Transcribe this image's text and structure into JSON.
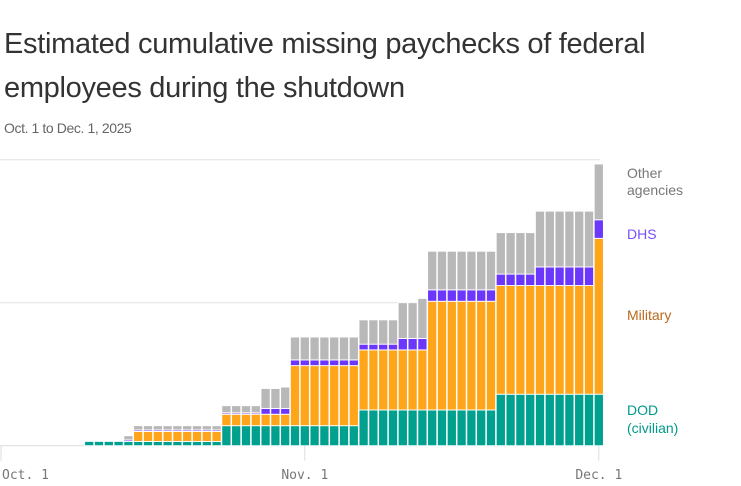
{
  "title_line1": "Estimated cumulative missing paychecks of federal",
  "title_line2": "employees during the shutdown",
  "subtitle": "Oct. 1 to Dec. 1, 2025",
  "chart_data": {
    "type": "bar",
    "stacked": true,
    "title": "Estimated cumulative missing paychecks of federal employees during the shutdown",
    "subtitle": "Oct. 1 to Dec. 1, 2025",
    "x_range": [
      "Oct. 1",
      "Dec. 1"
    ],
    "x_ticks": [
      "Oct. 1",
      "Nov. 1",
      "Dec. 1"
    ],
    "ylim": [
      0,
      2
    ],
    "y_gridlines": [
      1,
      2
    ],
    "grid": true,
    "legend_placement": "right, direct labels",
    "categories": [
      "Oct 10",
      "Oct 11",
      "Oct 12",
      "Oct 13",
      "Oct 14",
      "Oct 15",
      "Oct 16",
      "Oct 17",
      "Oct 18",
      "Oct 19",
      "Oct 20",
      "Oct 21",
      "Oct 22",
      "Oct 23",
      "Oct 24",
      "Oct 25",
      "Oct 26",
      "Oct 27",
      "Oct 28",
      "Oct 29",
      "Oct 30",
      "Oct 31",
      "Nov 1",
      "Nov 2",
      "Nov 3",
      "Nov 4",
      "Nov 5",
      "Nov 6",
      "Nov 7",
      "Nov 8",
      "Nov 9",
      "Nov 10",
      "Nov 11",
      "Nov 12",
      "Nov 13",
      "Nov 14",
      "Nov 15",
      "Nov 16",
      "Nov 17",
      "Nov 18",
      "Nov 19",
      "Nov 20",
      "Nov 21",
      "Nov 22",
      "Nov 23",
      "Nov 24",
      "Nov 25",
      "Nov 26",
      "Nov 27",
      "Nov 28",
      "Nov 29",
      "Nov 30",
      "Dec 1"
    ],
    "series": [
      {
        "name": "DOD (civilian)",
        "label_lines": [
          "DOD",
          "(civilian)"
        ],
        "color": "#00a08f",
        "label_color": "#00998a",
        "values": [
          0.03,
          0.03,
          0.03,
          0.03,
          0.03,
          0.03,
          0.03,
          0.03,
          0.03,
          0.03,
          0.03,
          0.03,
          0.03,
          0.03,
          0.14,
          0.14,
          0.14,
          0.14,
          0.14,
          0.14,
          0.14,
          0.14,
          0.14,
          0.14,
          0.14,
          0.14,
          0.14,
          0.14,
          0.25,
          0.25,
          0.25,
          0.25,
          0.25,
          0.25,
          0.25,
          0.25,
          0.25,
          0.25,
          0.25,
          0.25,
          0.25,
          0.25,
          0.36,
          0.36,
          0.36,
          0.36,
          0.36,
          0.36,
          0.36,
          0.36,
          0.36,
          0.36,
          0.36
        ]
      },
      {
        "name": "Military",
        "label_lines": [
          "Military"
        ],
        "color": "#ffa51a",
        "label_color": "#b8691c",
        "values": [
          0,
          0,
          0,
          0,
          0,
          0.07,
          0.07,
          0.07,
          0.07,
          0.07,
          0.07,
          0.07,
          0.07,
          0.07,
          0.08,
          0.08,
          0.08,
          0.08,
          0.08,
          0.08,
          0.08,
          0.42,
          0.42,
          0.42,
          0.42,
          0.42,
          0.42,
          0.42,
          0.42,
          0.42,
          0.42,
          0.42,
          0.42,
          0.42,
          0.42,
          0.76,
          0.76,
          0.76,
          0.76,
          0.76,
          0.76,
          0.76,
          0.76,
          0.76,
          0.76,
          0.76,
          0.76,
          0.76,
          0.76,
          0.76,
          0.76,
          0.76,
          1.09
        ]
      },
      {
        "name": "DHS",
        "label_lines": [
          "DHS"
        ],
        "color": "#6b38fb",
        "label_color": "#7a4dff",
        "values": [
          0,
          0,
          0,
          0,
          0.01,
          0.01,
          0.01,
          0.01,
          0.01,
          0.01,
          0.01,
          0.01,
          0.01,
          0.01,
          0.01,
          0.01,
          0.01,
          0.01,
          0.04,
          0.04,
          0.04,
          0.04,
          0.04,
          0.04,
          0.04,
          0.04,
          0.04,
          0.04,
          0.04,
          0.04,
          0.04,
          0.04,
          0.08,
          0.08,
          0.08,
          0.08,
          0.08,
          0.08,
          0.08,
          0.08,
          0.08,
          0.08,
          0.08,
          0.08,
          0.08,
          0.08,
          0.13,
          0.13,
          0.13,
          0.13,
          0.13,
          0.13,
          0.13
        ]
      },
      {
        "name": "Other agencies",
        "label_lines": [
          "Other",
          "agencies"
        ],
        "color": "#b8b8b8",
        "label_color": "#777777",
        "values": [
          0,
          0,
          0,
          0,
          0.03,
          0.03,
          0.03,
          0.03,
          0.03,
          0.03,
          0.03,
          0.03,
          0.03,
          0.03,
          0.05,
          0.05,
          0.05,
          0.05,
          0.14,
          0.14,
          0.15,
          0.16,
          0.16,
          0.16,
          0.16,
          0.16,
          0.16,
          0.16,
          0.17,
          0.17,
          0.17,
          0.17,
          0.25,
          0.25,
          0.28,
          0.27,
          0.27,
          0.27,
          0.27,
          0.27,
          0.27,
          0.27,
          0.29,
          0.29,
          0.29,
          0.29,
          0.39,
          0.39,
          0.39,
          0.39,
          0.39,
          0.39,
          0.39
        ]
      }
    ]
  }
}
